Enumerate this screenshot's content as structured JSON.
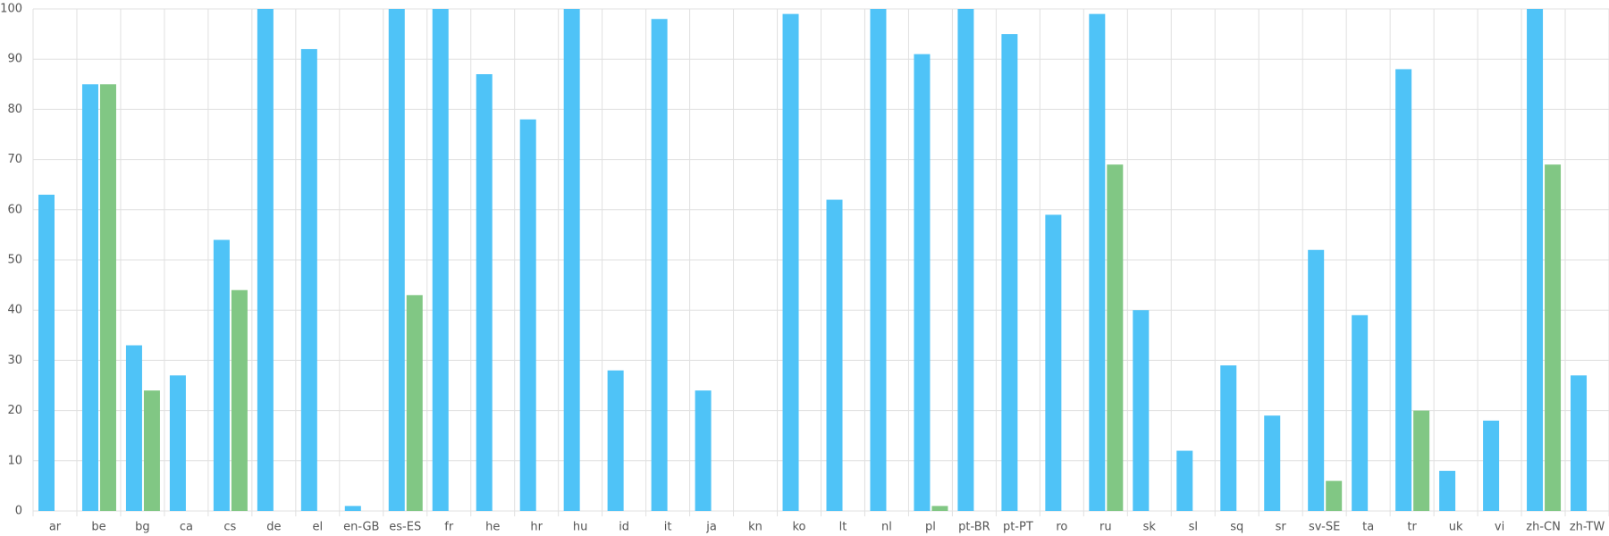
{
  "chart_data": {
    "type": "bar",
    "categories": [
      "ar",
      "be",
      "bg",
      "ca",
      "cs",
      "de",
      "el",
      "en-GB",
      "es-ES",
      "fr",
      "he",
      "hr",
      "hu",
      "id",
      "it",
      "ja",
      "kn",
      "ko",
      "lt",
      "nl",
      "pl",
      "pt-BR",
      "pt-PT",
      "ro",
      "ru",
      "sk",
      "sl",
      "sq",
      "sr",
      "sv-SE",
      "ta",
      "tr",
      "uk",
      "vi",
      "zh-CN",
      "zh-TW"
    ],
    "series": [
      {
        "color": "#4fc3f7",
        "values": [
          63,
          85,
          33,
          27,
          54,
          100,
          92,
          1,
          100,
          100,
          87,
          78,
          100,
          28,
          98,
          24,
          0,
          99,
          62,
          100,
          91,
          100,
          95,
          59,
          99,
          40,
          12,
          29,
          19,
          52,
          39,
          88,
          8,
          18,
          100,
          27
        ]
      },
      {
        "color": "#81c784",
        "values": [
          0,
          85,
          24,
          0,
          44,
          0,
          0,
          0,
          43,
          0,
          0,
          0,
          0,
          0,
          0,
          0,
          0,
          0,
          0,
          0,
          1,
          0,
          0,
          0,
          69,
          0,
          0,
          0,
          0,
          6,
          0,
          20,
          0,
          0,
          69,
          0
        ]
      }
    ],
    "ylim": [
      0,
      100
    ],
    "yticks": [
      0,
      10,
      20,
      30,
      40,
      50,
      60,
      70,
      80,
      90,
      100
    ],
    "grid": true
  }
}
